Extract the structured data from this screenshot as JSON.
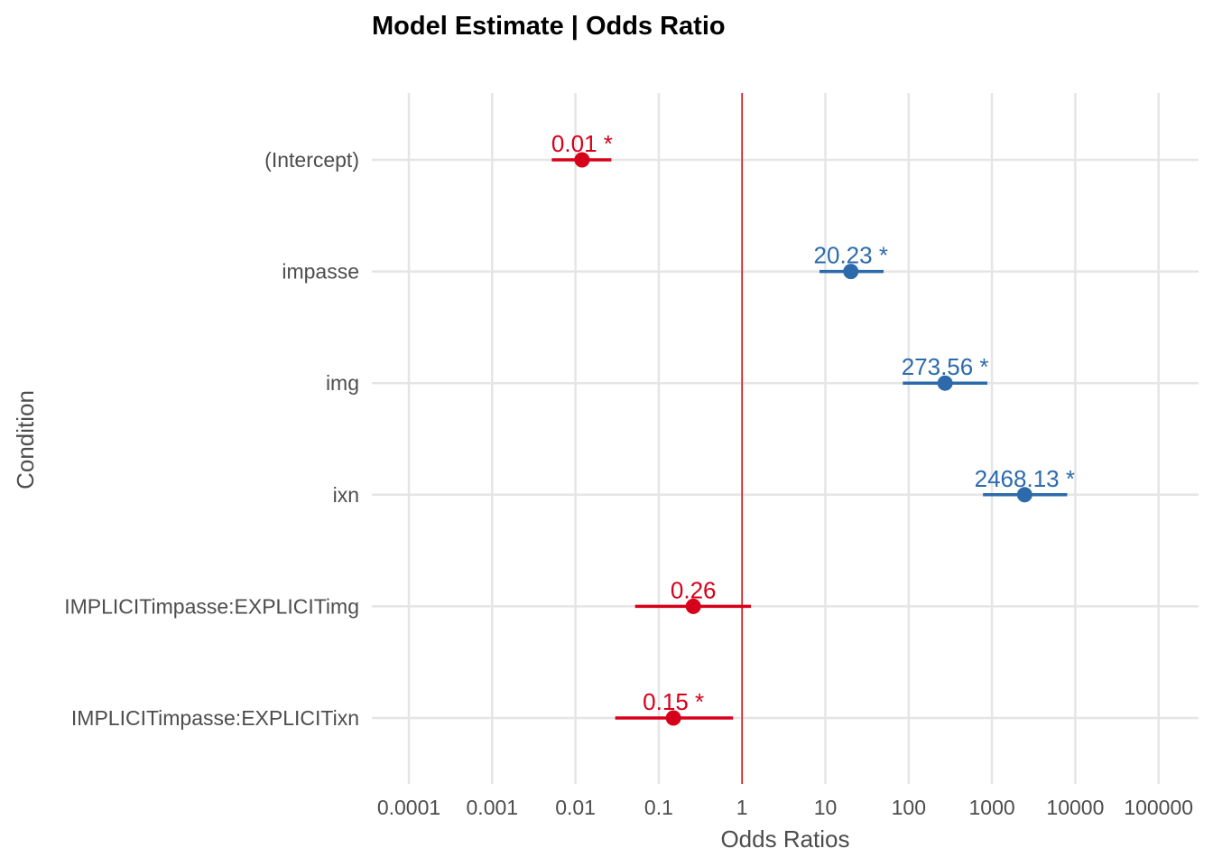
{
  "chart_data": {
    "type": "forest",
    "title": "Model Estimate | Odds Ratio",
    "xlabel": "Odds Ratios",
    "ylabel": "Condition",
    "x_scale": "log10",
    "xlim": [
      0.0001,
      100000
    ],
    "x_ticks": [
      "0.0001",
      "0.001",
      "0.01",
      "0.1",
      "1",
      "10",
      "100",
      "1000",
      "10000",
      "100000"
    ],
    "reference_line": 1,
    "reference_line_color": "#d7191c",
    "grid": true,
    "colors": {
      "positive": "#2c6aac",
      "negative": "#d7001a"
    },
    "rows": [
      {
        "term": "(Intercept)",
        "estimate": 0.012,
        "ci_low": 0.0052,
        "ci_high": 0.027,
        "label": "0.01 *",
        "direction": "negative"
      },
      {
        "term": "impasse",
        "estimate": 20.23,
        "ci_low": 8.5,
        "ci_high": 50,
        "label": "20.23 *",
        "direction": "positive"
      },
      {
        "term": "img",
        "estimate": 273.56,
        "ci_low": 85,
        "ci_high": 880,
        "label": "273.56 *",
        "direction": "positive"
      },
      {
        "term": "ixn",
        "estimate": 2468.13,
        "ci_low": 780,
        "ci_high": 8000,
        "label": "2468.13 *",
        "direction": "positive"
      },
      {
        "term": "IMPLICITimpasse:EXPLICITimg",
        "estimate": 0.26,
        "ci_low": 0.052,
        "ci_high": 1.28,
        "label": "0.26",
        "direction": "negative"
      },
      {
        "term": "IMPLICITimpasse:EXPLICITixn",
        "estimate": 0.15,
        "ci_low": 0.03,
        "ci_high": 0.78,
        "label": "0.15 *",
        "direction": "negative"
      }
    ]
  }
}
